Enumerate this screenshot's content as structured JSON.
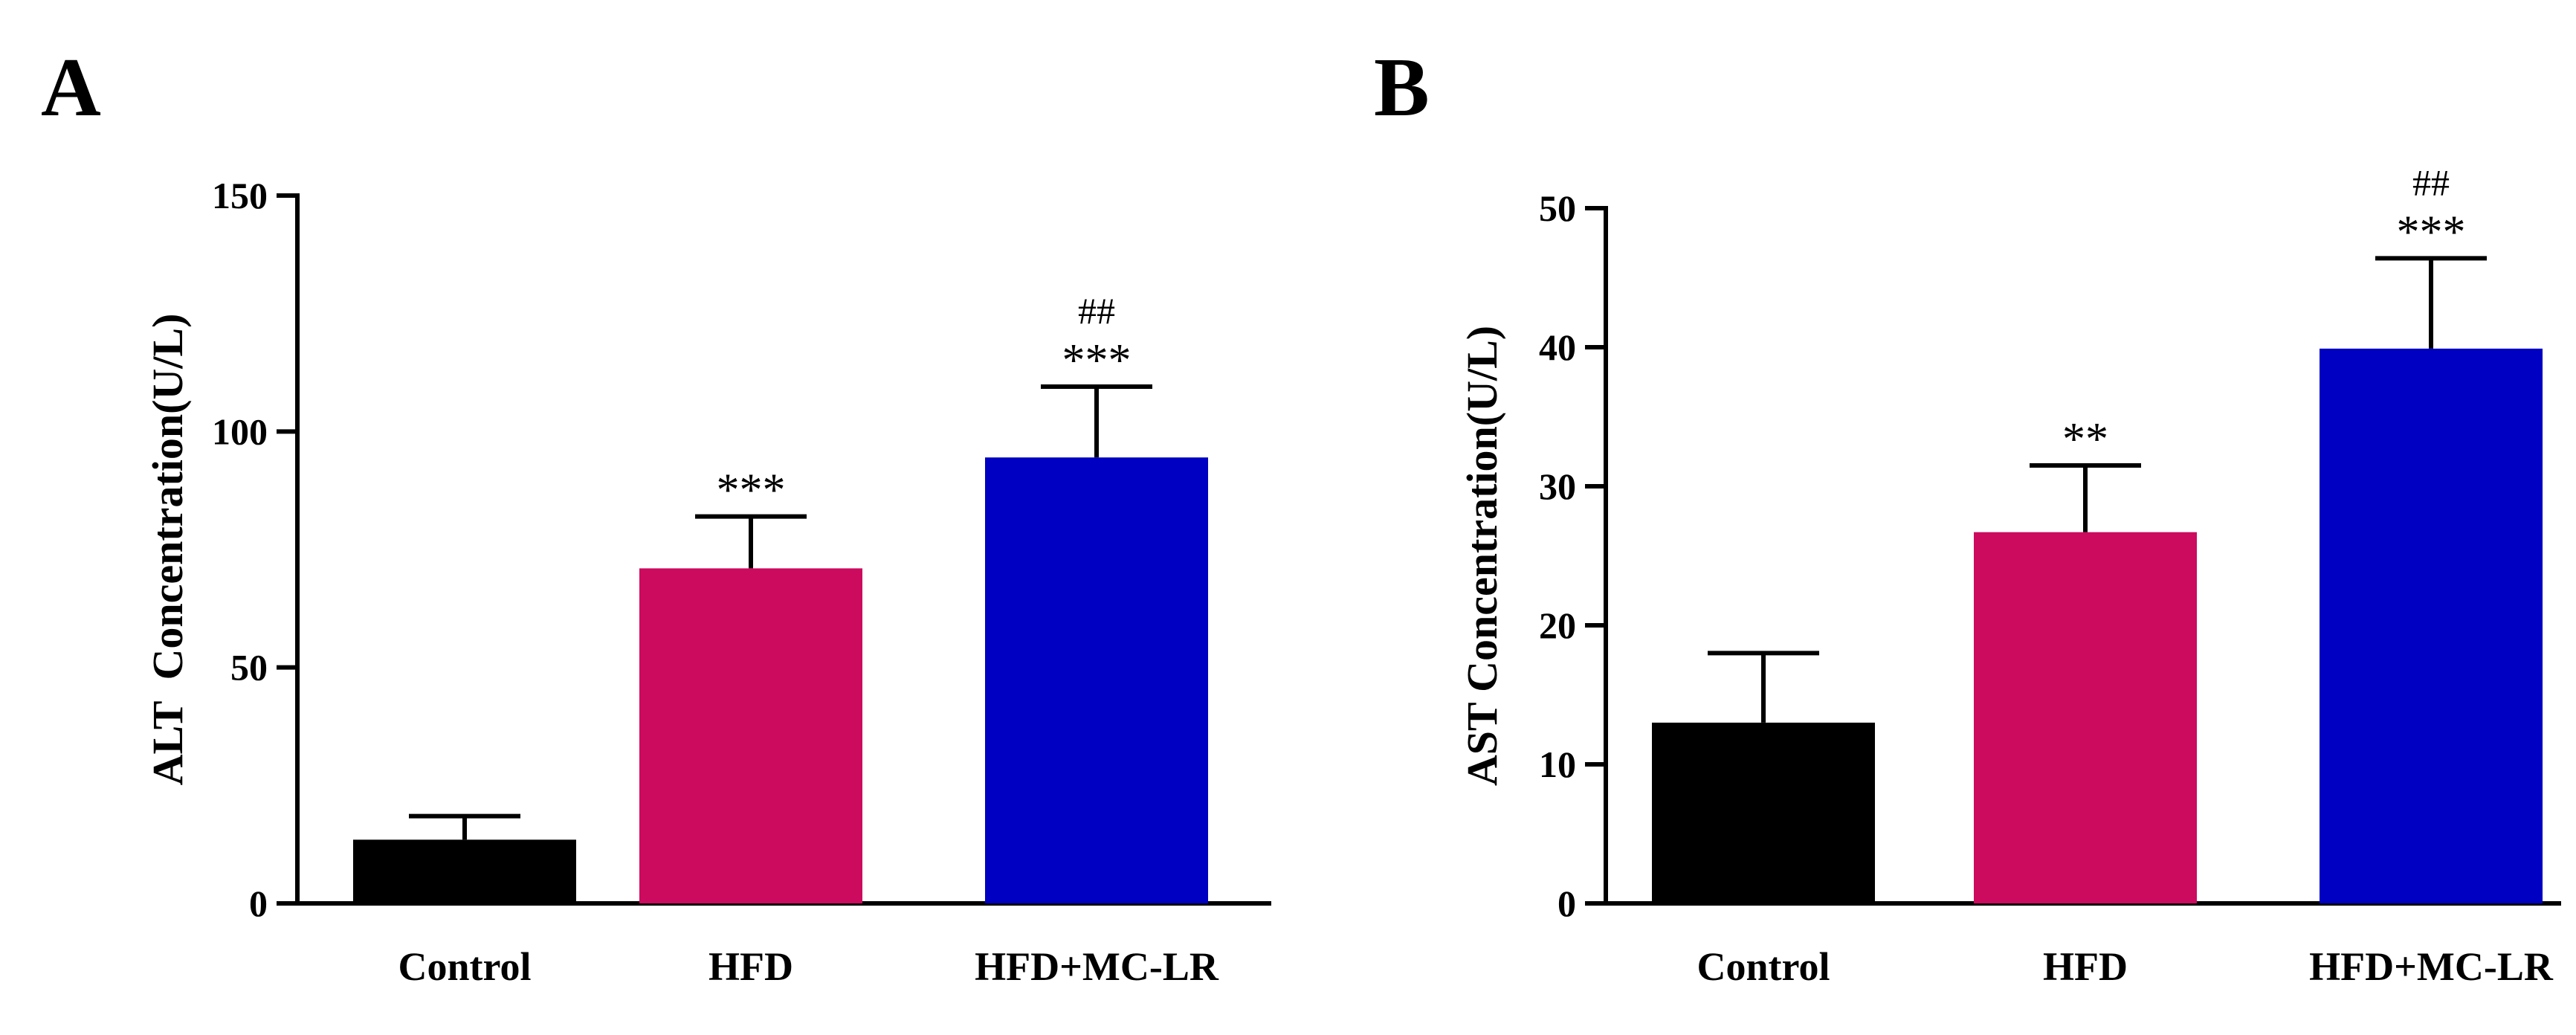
{
  "chart_data": [
    {
      "type": "bar",
      "panel_label": "A",
      "categories": [
        "Control",
        "HFD",
        "HFD+MC-LR"
      ],
      "values": [
        13.5,
        71,
        94.5
      ],
      "errors": [
        5,
        11,
        15
      ],
      "significance": [
        "",
        "***",
        "***"
      ],
      "significance_hash": [
        "",
        "",
        "##"
      ],
      "colors": [
        "#000000",
        "#CC0A5E",
        "#0000C2"
      ],
      "ylabel": "ALT  Concentration(U/L)",
      "xlabel": "",
      "ylim": [
        0,
        150
      ],
      "yticks": [
        0,
        50,
        100,
        150
      ]
    },
    {
      "type": "bar",
      "panel_label": "B",
      "categories": [
        "Control",
        "HFD",
        "HFD+MC-LR"
      ],
      "values": [
        13,
        26.7,
        39.9
      ],
      "errors": [
        5,
        4.8,
        6.5
      ],
      "significance": [
        "",
        "**",
        "***"
      ],
      "significance_hash": [
        "",
        "",
        "##"
      ],
      "colors": [
        "#000000",
        "#CC0A5E",
        "#0000C2"
      ],
      "ylabel": "AST Concentration(U/L)",
      "xlabel": "",
      "ylim": [
        0,
        50
      ],
      "yticks": [
        0,
        10,
        20,
        30,
        40,
        50
      ]
    }
  ]
}
